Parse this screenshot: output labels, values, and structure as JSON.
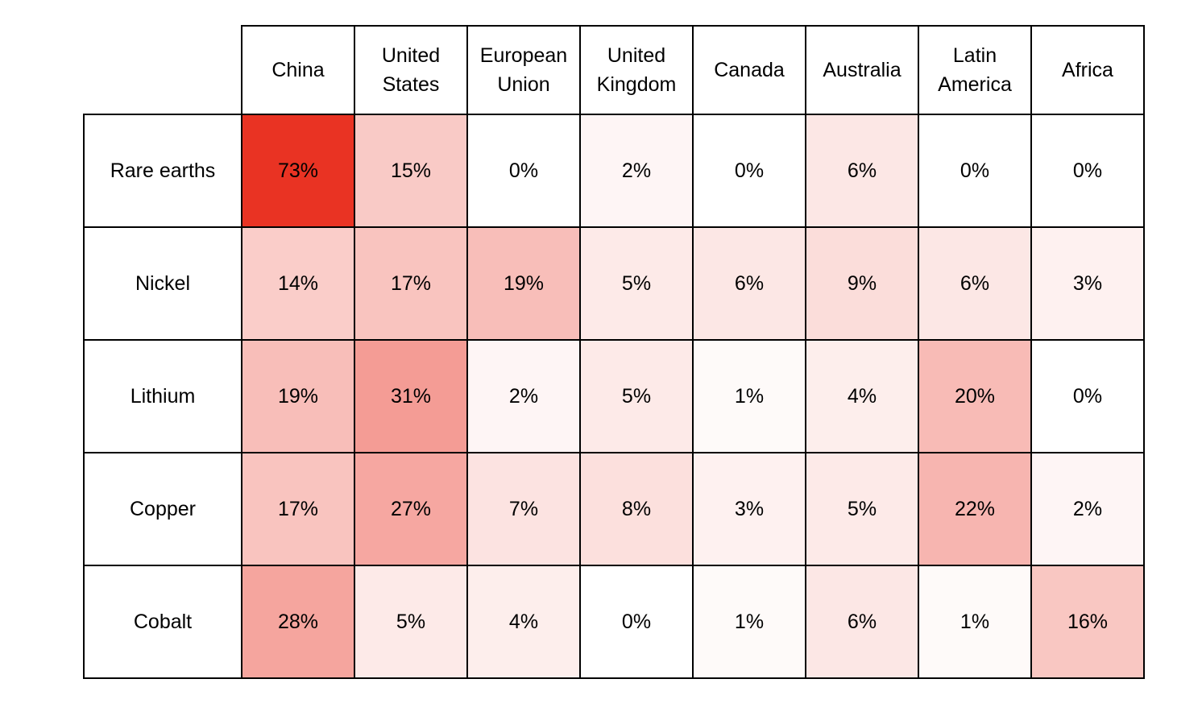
{
  "page": {
    "background_color": "#ffffff"
  },
  "chart_data": {
    "type": "heatmap",
    "columns": [
      "China",
      "United States",
      "European Union",
      "United Kingdom",
      "Canada",
      "Australia",
      "Latin America",
      "Africa"
    ],
    "rows": [
      "Rare earths",
      "Nickel",
      "Lithium",
      "Copper",
      "Cobalt"
    ],
    "unit": "%",
    "values_percent": [
      [
        73,
        15,
        0,
        2,
        0,
        6,
        0,
        0
      ],
      [
        14,
        17,
        19,
        5,
        6,
        9,
        6,
        3
      ],
      [
        19,
        31,
        2,
        5,
        1,
        4,
        20,
        0
      ],
      [
        17,
        27,
        7,
        8,
        3,
        5,
        22,
        2
      ],
      [
        28,
        5,
        4,
        0,
        1,
        6,
        1,
        16
      ]
    ],
    "color_scale": {
      "min_value": 0,
      "max_value": 73,
      "min_color": "#ffffff",
      "max_color": "#e93323",
      "gamma": 0.85
    },
    "grid_color": "#000000",
    "text_color": "#000000",
    "legend": "none",
    "layout": "matrix; row labels left column; column headers top row; empty top-left corner"
  }
}
